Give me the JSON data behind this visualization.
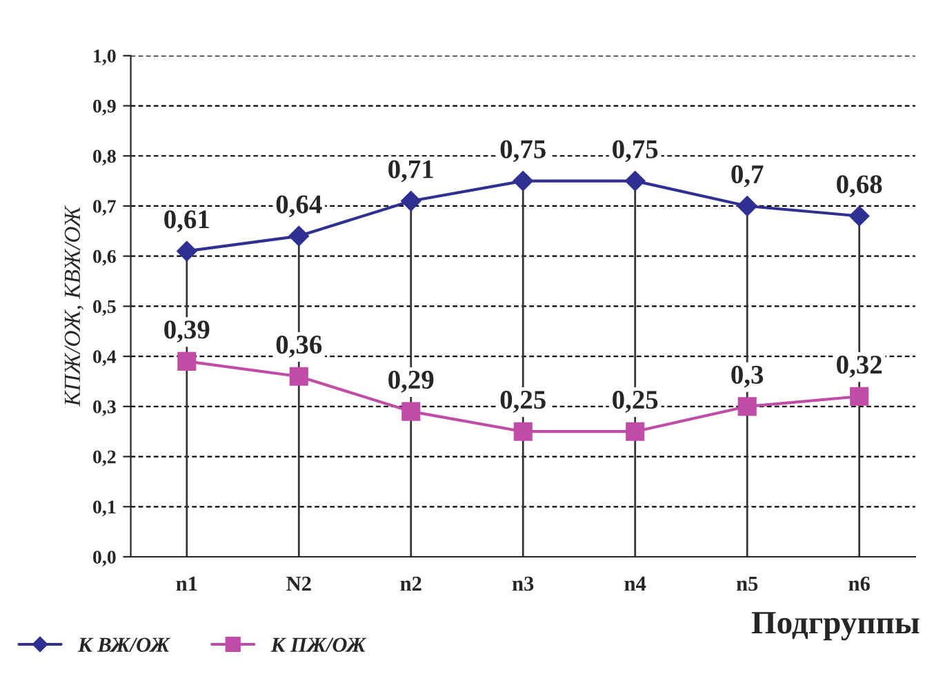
{
  "chart_data": {
    "type": "line",
    "categories": [
      "n1",
      "N2",
      "n2",
      "n3",
      "n4",
      "n5",
      "n6"
    ],
    "xlabel": "Подгруппы",
    "ylabel": "КПЖ/ОЖ, КВЖ/ОЖ",
    "series": [
      {
        "name": "К ВЖ/ОЖ",
        "color": "#2e3192",
        "marker": "diamond",
        "values": [
          0.61,
          0.64,
          0.71,
          0.75,
          0.75,
          0.7,
          0.68
        ],
        "value_labels": [
          "0,61",
          "0,64",
          "0,71",
          "0,75",
          "0,75",
          "0,7",
          "0,68"
        ]
      },
      {
        "name": "К ПЖ/ОЖ",
        "color": "#c04ca8",
        "marker": "square",
        "values": [
          0.39,
          0.36,
          0.29,
          0.25,
          0.25,
          0.3,
          0.32
        ],
        "value_labels": [
          "0,39",
          "0,36",
          "0,29",
          "0,25",
          "0,25",
          "0,3",
          "0,32"
        ]
      }
    ],
    "ylim": [
      0,
      1
    ],
    "yticks": [
      {
        "value": 0,
        "label": "0,0"
      },
      {
        "value": 0.1,
        "label": "0,1"
      },
      {
        "value": 0.2,
        "label": "0,2"
      },
      {
        "value": 0.3,
        "label": "0,3"
      },
      {
        "value": 0.4,
        "label": "0,4"
      },
      {
        "value": 0.5,
        "label": "0,5"
      },
      {
        "value": 0.6,
        "label": "0,6"
      },
      {
        "value": 0.7,
        "label": "0,7"
      },
      {
        "value": 0.8,
        "label": "0,8"
      },
      {
        "value": 0.9,
        "label": "0,9"
      },
      {
        "value": 1.0,
        "label": "1,0"
      }
    ],
    "grid": true,
    "legend": "bottom left",
    "line_style": "solid"
  }
}
